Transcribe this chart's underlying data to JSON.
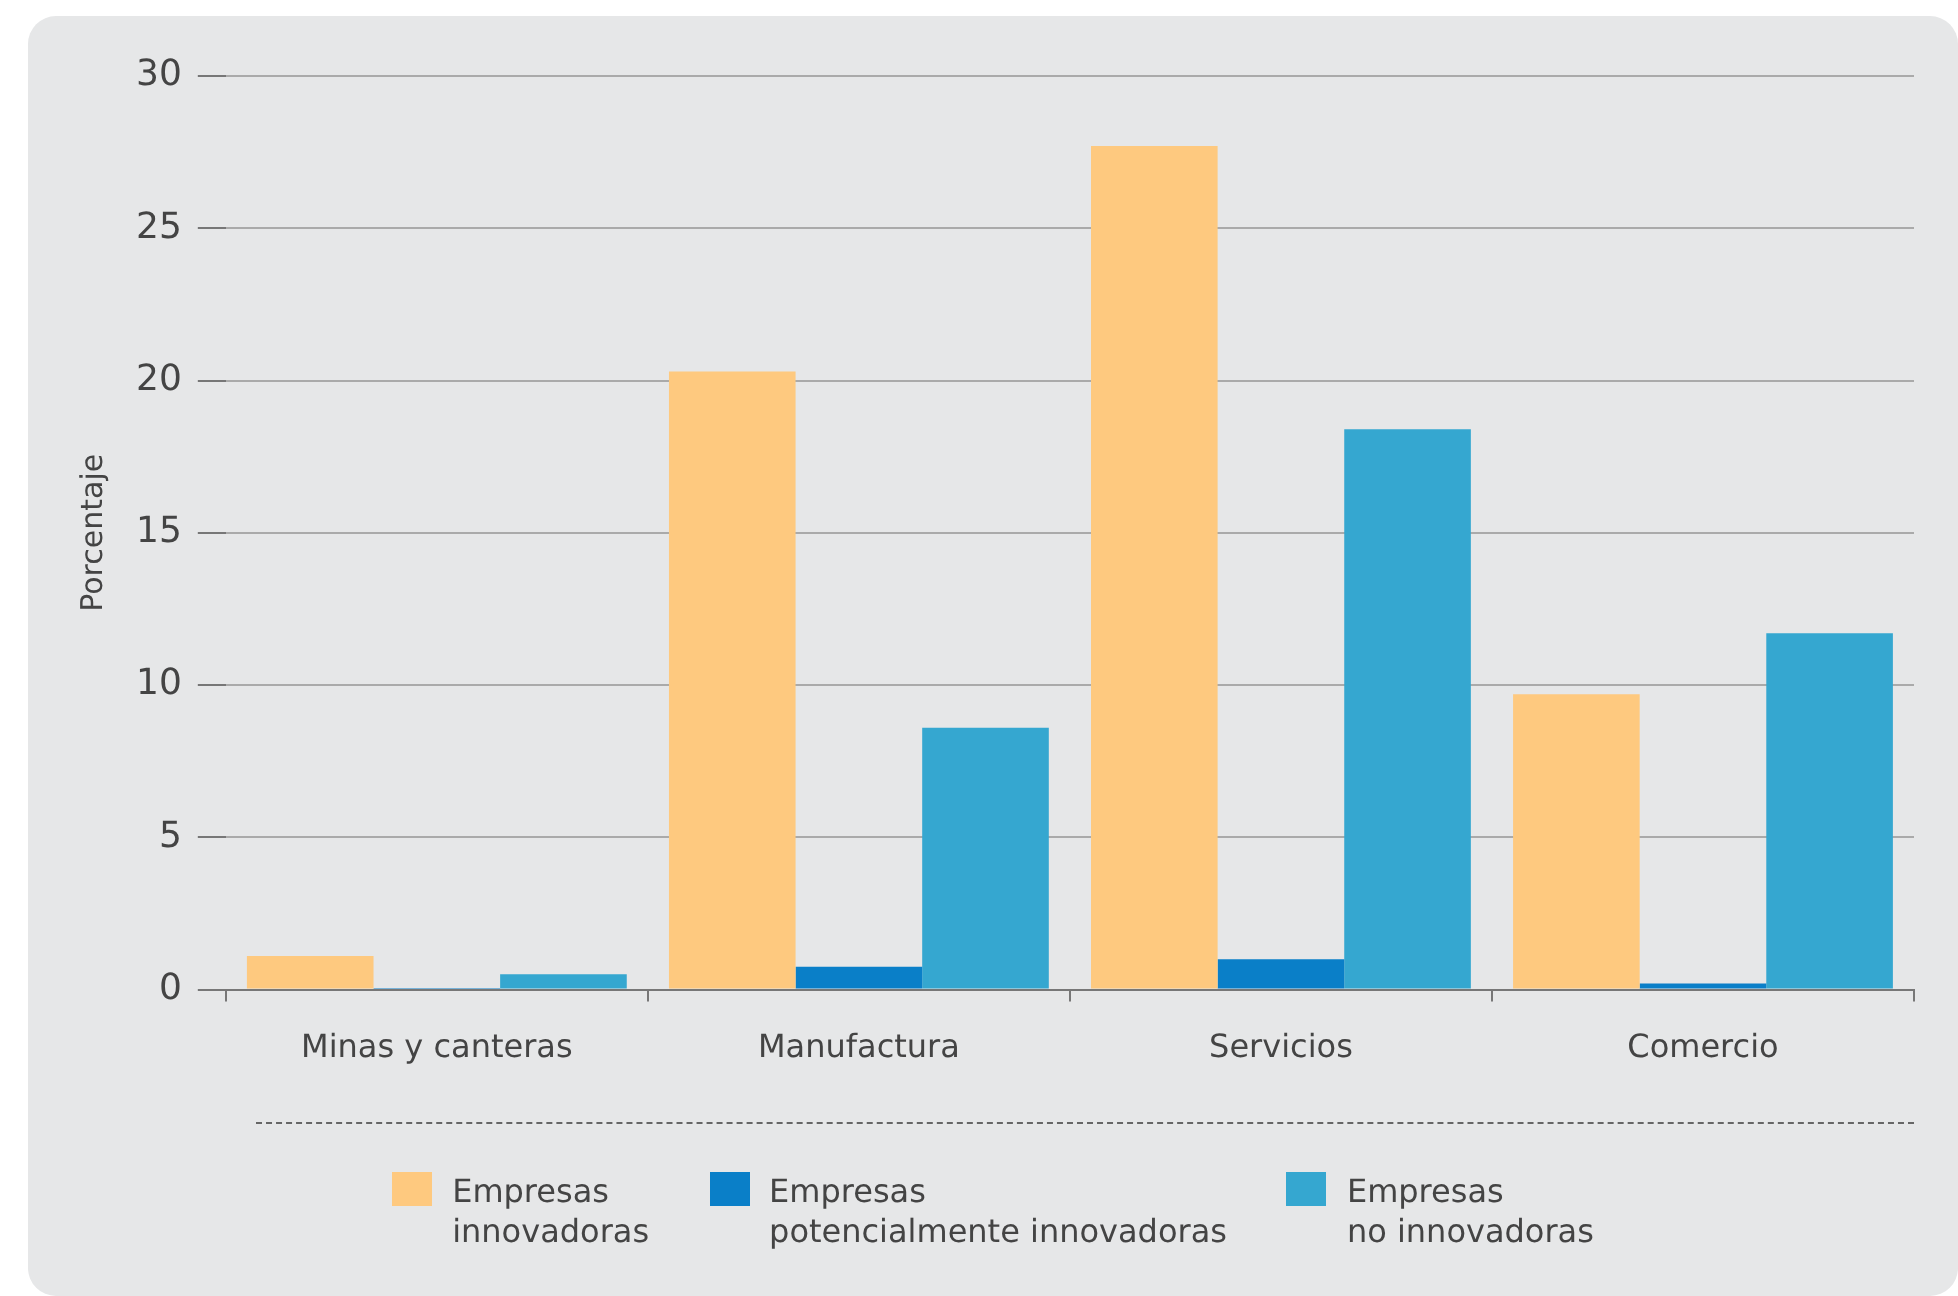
{
  "chart_data": {
    "type": "bar",
    "ylabel": "Porcentaje",
    "categories": [
      "Minas y canteras",
      "Manufactura",
      "Servicios",
      "Comercio"
    ],
    "series": [
      {
        "name": "Empresas innovadoras",
        "color": "#fec97f",
        "values": [
          1.1,
          20.3,
          27.7,
          9.7
        ]
      },
      {
        "name": "Empresas potencialmente innovadoras",
        "color": "#0a7fc8",
        "values": [
          0.05,
          0.75,
          1.0,
          0.2
        ]
      },
      {
        "name": "Empresas no innovadoras",
        "color": "#35a7d0",
        "values": [
          0.5,
          8.6,
          18.4,
          11.7
        ]
      }
    ],
    "ylim": [
      0,
      30
    ],
    "yticks": [
      0,
      5,
      10,
      15,
      20,
      25,
      30
    ],
    "grid": "y",
    "legend": "bottom"
  }
}
